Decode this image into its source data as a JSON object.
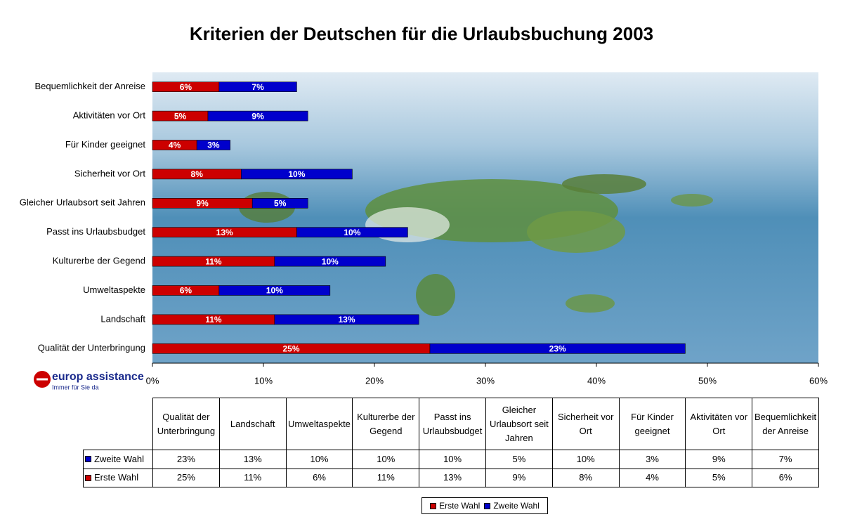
{
  "chart_data": {
    "type": "stacked-bar-horizontal",
    "title": "Kriterien der Deutschen für die Urlaubsbuchung 2003",
    "categories": [
      "Qualität der Unterbringung",
      "Landschaft",
      "Umweltaspekte",
      "Kulturerbe der Gegend",
      "Passt ins Urlaubsbudget",
      "Gleicher Urlaubsort seit Jahren",
      "Sicherheit vor Ort",
      "Für Kinder geeignet",
      "Aktivitäten vor Ort",
      "Bequemlichkeit der Anreise"
    ],
    "series": [
      {
        "name": "Erste Wahl",
        "color": "#cc0000",
        "values": [
          25,
          11,
          6,
          11,
          13,
          9,
          8,
          4,
          5,
          6
        ],
        "value_labels": [
          "25%",
          "11%",
          "6%",
          "11%",
          "13%",
          "9%",
          "8%",
          "4%",
          "5%",
          "6%"
        ]
      },
      {
        "name": "Zweite Wahl",
        "color": "#0000cc",
        "values": [
          23,
          13,
          10,
          10,
          10,
          5,
          10,
          3,
          9,
          7
        ],
        "value_labels": [
          "23%",
          "13%",
          "10%",
          "10%",
          "10%",
          "5%",
          "10%",
          "3%",
          "9%",
          "7%"
        ]
      }
    ],
    "xlim": [
      0,
      60
    ],
    "xticks": [
      {
        "value": 0,
        "label": "0%"
      },
      {
        "value": 10,
        "label": "10%"
      },
      {
        "value": 20,
        "label": "20%"
      },
      {
        "value": 30,
        "label": "30%"
      },
      {
        "value": 40,
        "label": "40%"
      },
      {
        "value": 50,
        "label": "50%"
      },
      {
        "value": 60,
        "label": "60%"
      }
    ],
    "grid": false
  },
  "logo": {
    "name": "europ assistance",
    "tagline": "Immer für Sie da"
  }
}
